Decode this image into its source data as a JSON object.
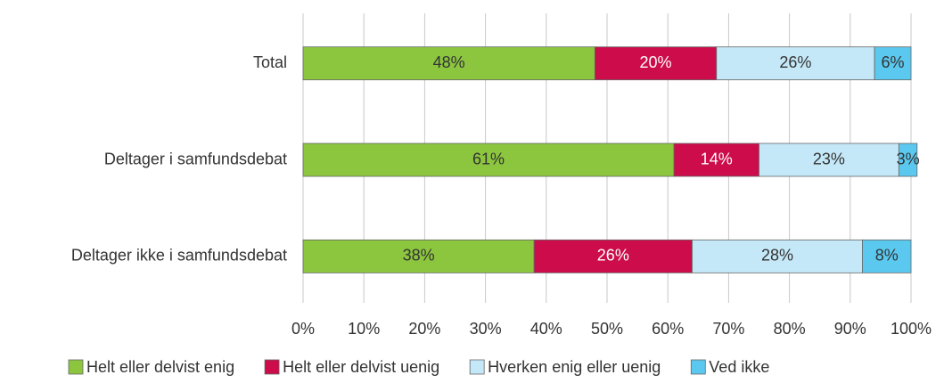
{
  "chart_data": {
    "type": "stacked-barh",
    "categories": [
      "Total",
      "Deltager i samfundsdebat",
      "Deltager ikke i samfundsdebat"
    ],
    "series": [
      {
        "name": "Helt eller delvist enig",
        "color": "#8cc63f",
        "values": [
          48,
          61,
          38
        ],
        "value_labels": [
          "48%",
          "61%",
          "38%"
        ]
      },
      {
        "name": "Helt eller delvist uenig",
        "color": "#cc0c4b",
        "values": [
          20,
          14,
          26
        ],
        "value_labels": [
          "20%",
          "14%",
          "26%"
        ]
      },
      {
        "name": "Hverken enig eller uenig",
        "color": "#c5e8f8",
        "values": [
          26,
          23,
          28
        ],
        "value_labels": [
          "26%",
          "23%",
          "28%"
        ]
      },
      {
        "name": "Ved ikke",
        "color": "#5bc8ef",
        "values": [
          6,
          3,
          8
        ],
        "value_labels": [
          "6%",
          "3%",
          "8%"
        ]
      }
    ],
    "xlim": [
      0,
      100
    ],
    "xticks": [
      {
        "value": 0,
        "label": "0%"
      },
      {
        "value": 10,
        "label": "10%"
      },
      {
        "value": 20,
        "label": "20%"
      },
      {
        "value": 30,
        "label": "30%"
      },
      {
        "value": 40,
        "label": "40%"
      },
      {
        "value": 50,
        "label": "50%"
      },
      {
        "value": 60,
        "label": "60%"
      },
      {
        "value": 70,
        "label": "70%"
      },
      {
        "value": 80,
        "label": "80%"
      },
      {
        "value": 90,
        "label": "90%"
      },
      {
        "value": 100,
        "label": "100%"
      }
    ],
    "grid": true,
    "legend": "bottom"
  }
}
